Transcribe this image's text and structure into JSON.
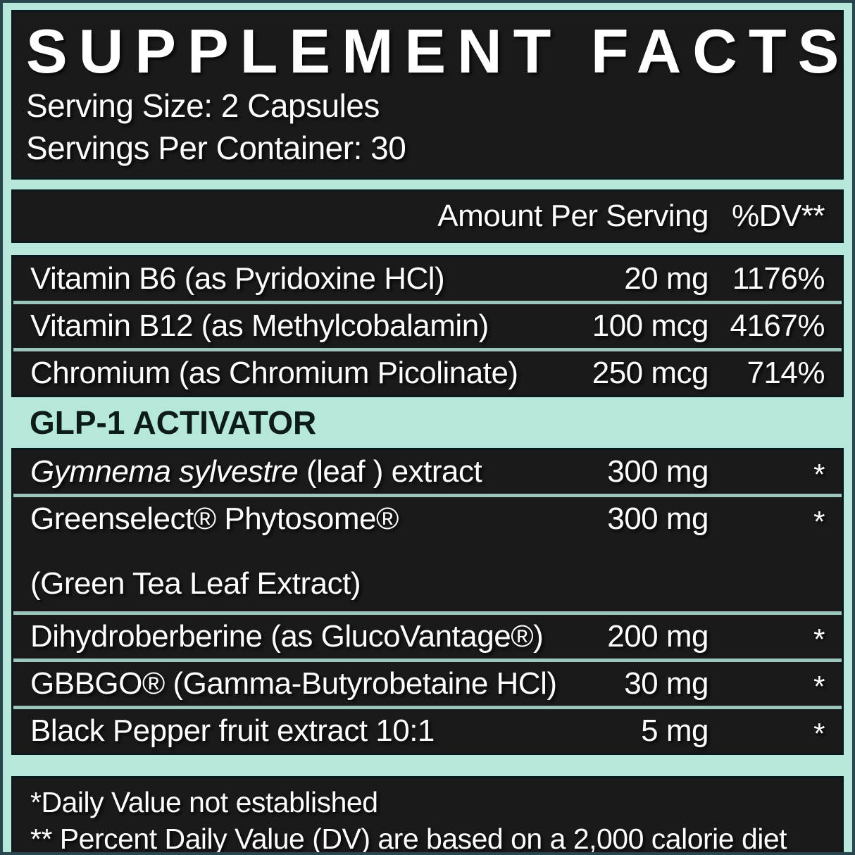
{
  "label": {
    "title": "SUPPLEMENT FACTS",
    "serving_size": "Serving Size: 2 Capsules",
    "servings_per_container": "Servings Per Container: 30",
    "columns": {
      "amount": "Amount Per Serving",
      "dv": "%DV**"
    },
    "vitamins": [
      {
        "name": "Vitamin B6 (as Pyridoxine HCl)",
        "amount": "20 mg",
        "dv": "1176%"
      },
      {
        "name": "Vitamin B12 (as Methylcobalamin)",
        "amount": "100 mcg",
        "dv": "4167%"
      },
      {
        "name": "Chromium (as Chromium Picolinate)",
        "amount": "250 mcg",
        "dv": "714%"
      }
    ],
    "section_header": "GLP-1 ACTIVATOR",
    "botanicals": [
      {
        "name_italic": "Gymnema sylvestre",
        "name_rest": " (leaf ) extract",
        "amount": "300 mg",
        "dv": "*"
      },
      {
        "name": "Greenselect® Phytosome®",
        "subname": "(Green Tea Leaf Extract)",
        "amount": "300 mg",
        "dv": "*"
      },
      {
        "name": "Dihydroberberine (as GlucoVantage®)",
        "amount": "200 mg",
        "dv": "*"
      },
      {
        "name": "GBBGO® (Gamma-Butyrobetaine HCl)",
        "amount": "30 mg",
        "dv": "*"
      },
      {
        "name": "Black Pepper fruit extract 10:1",
        "amount": "5 mg",
        "dv": "*"
      }
    ],
    "footnotes": {
      "daily_value": "*Daily Value not established",
      "percent_dv": "** Percent Daily Value (DV) are based on a 2,000 calorie diet"
    },
    "colors": {
      "mint": "#b5e7da",
      "panel_black": "#1a1a1a",
      "thin_separator": "#9cc5bb",
      "outer_edge": "#2b454e",
      "section_text": "#0e1c18",
      "text_white": "#fdfdfd"
    }
  }
}
